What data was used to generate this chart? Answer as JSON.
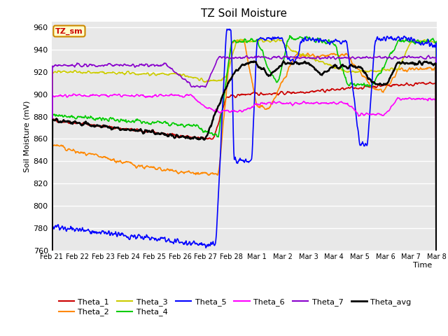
{
  "title": "TZ Soil Moisture",
  "ylabel": "Soil Moisture (mV)",
  "xlabel": "Time",
  "legend_label": "TZ_sm",
  "ylim": [
    760,
    965
  ],
  "yticks": [
    760,
    780,
    800,
    820,
    840,
    860,
    880,
    900,
    920,
    940,
    960
  ],
  "xtick_labels": [
    "Feb 21",
    "Feb 22",
    "Feb 23",
    "Feb 24",
    "Feb 25",
    "Feb 26",
    "Feb 27",
    "Feb 28",
    "Mar 1",
    "Mar 2",
    "Mar 3",
    "Mar 4",
    "Mar 5",
    "Mar 6",
    "Mar 7",
    "Mar 8"
  ],
  "fig_bg": "#ffffff",
  "plot_bg": "#e8e8e8",
  "grid_color": "#ffffff",
  "series_colors": {
    "Theta_1": "#cc0000",
    "Theta_2": "#ff8800",
    "Theta_3": "#cccc00",
    "Theta_4": "#00cc00",
    "Theta_5": "#0000ff",
    "Theta_6": "#ff00ff",
    "Theta_7": "#8800cc",
    "Theta_avg": "#000000"
  },
  "series_lw": {
    "Theta_1": 1.2,
    "Theta_2": 1.2,
    "Theta_3": 1.2,
    "Theta_4": 1.2,
    "Theta_5": 1.2,
    "Theta_6": 1.2,
    "Theta_7": 1.2,
    "Theta_avg": 1.8
  }
}
